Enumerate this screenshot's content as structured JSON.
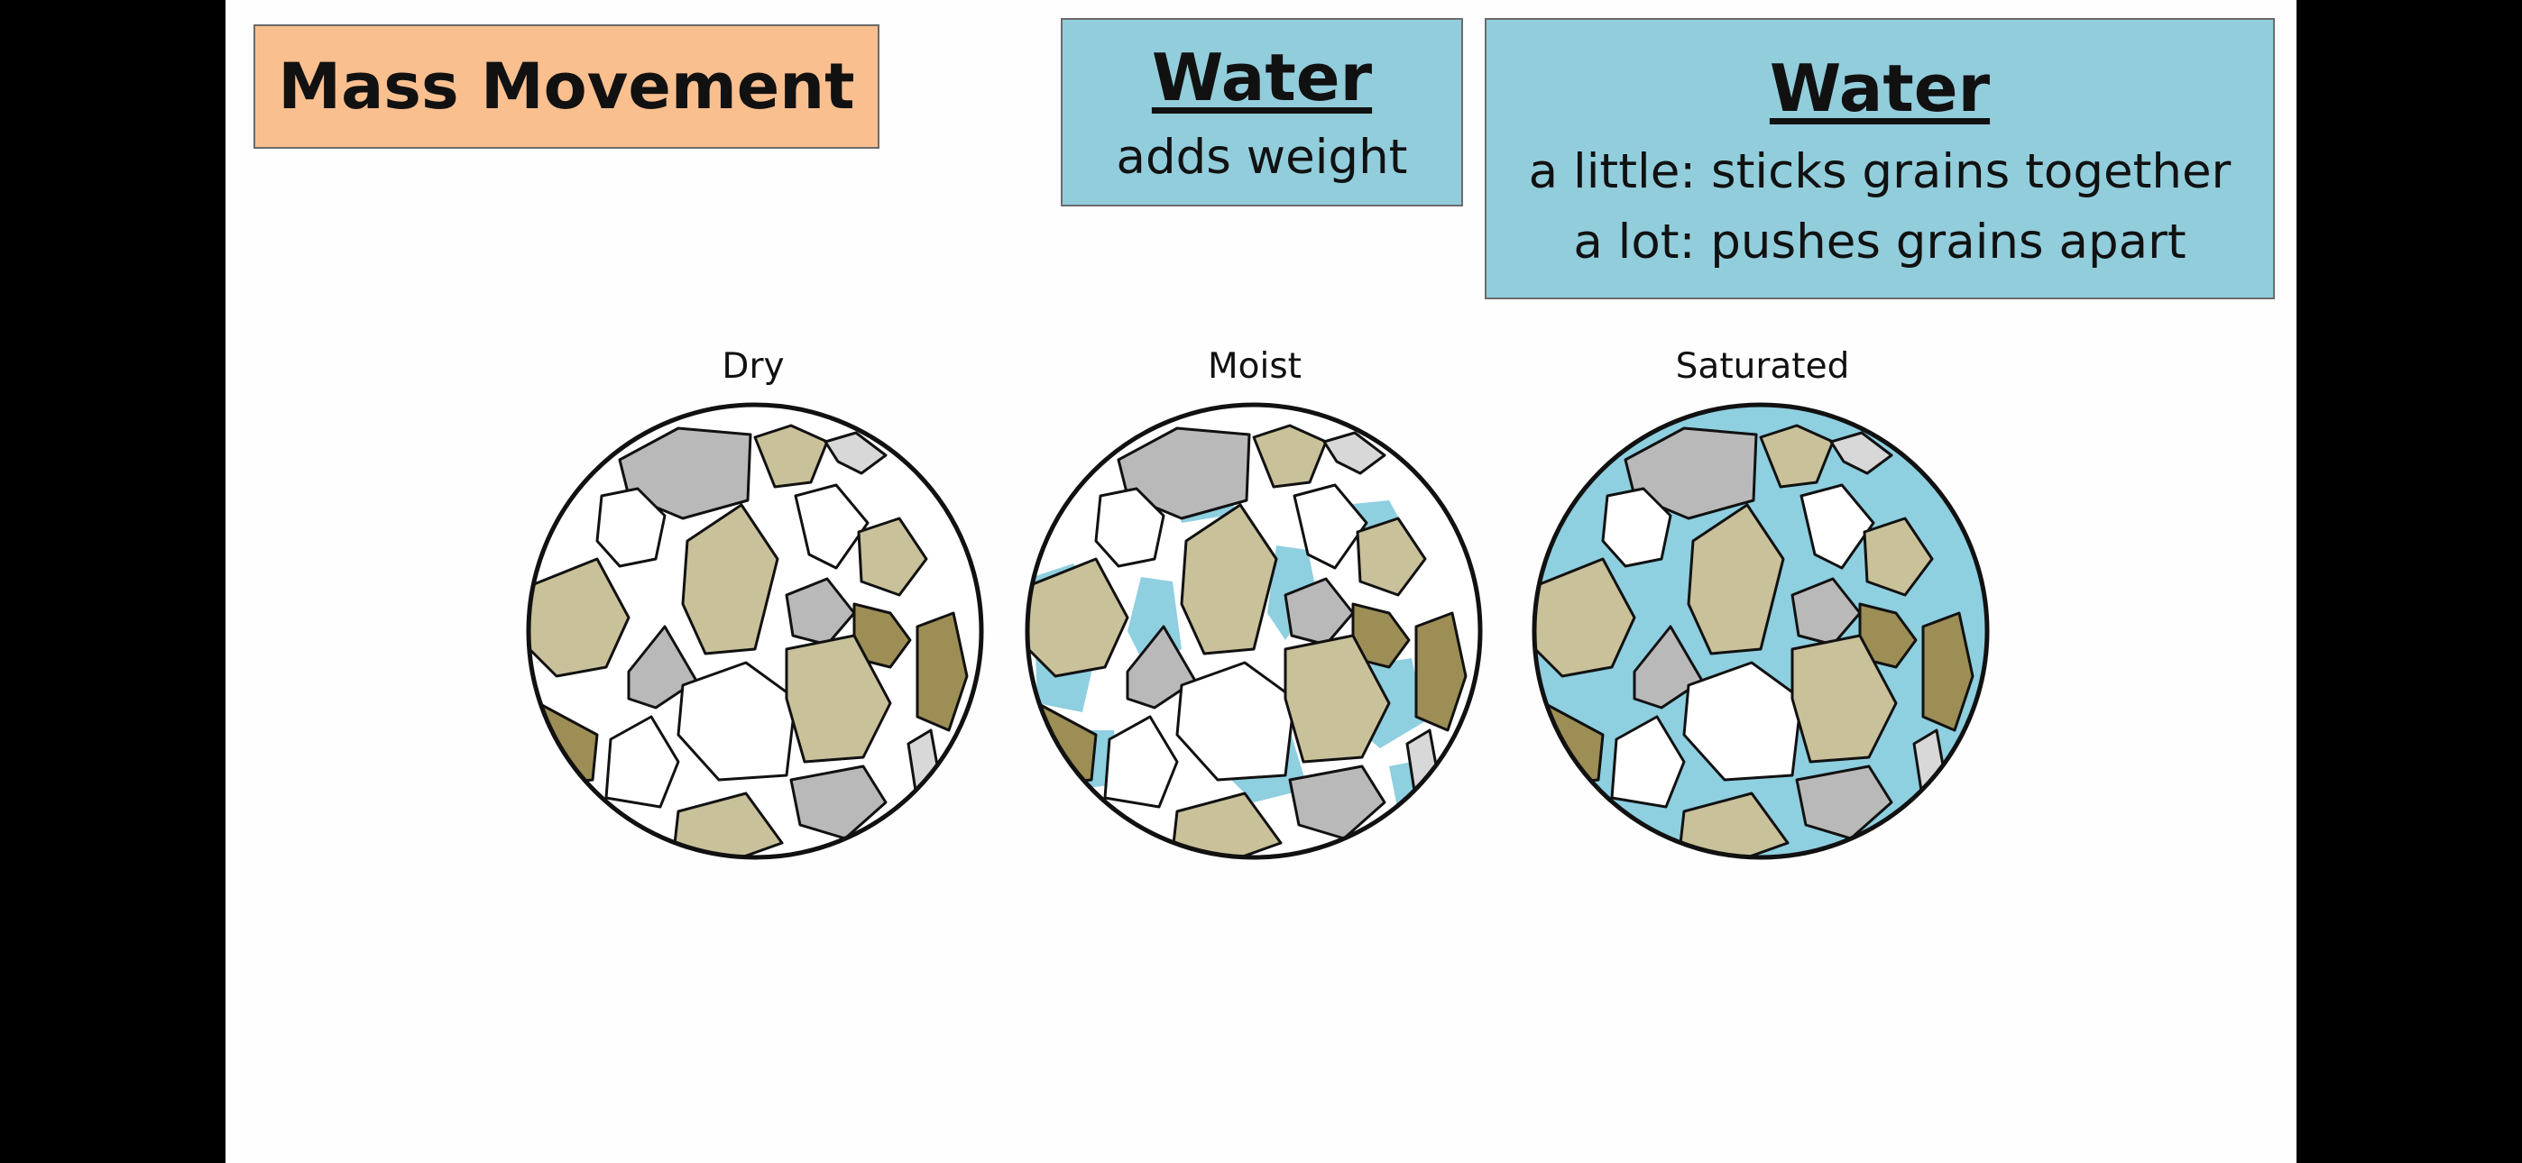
{
  "title": "Mass Movement",
  "water_box_1": {
    "heading": "Water",
    "text": "adds weight"
  },
  "water_box_2": {
    "heading": "Water",
    "line1": "a little: sticks grains together",
    "line2": "a lot: pushes grains apart"
  },
  "diagrams": [
    {
      "label": "Dry",
      "fill": "none"
    },
    {
      "label": "Moist",
      "fill": "partial"
    },
    {
      "label": "Saturated",
      "fill": "full"
    }
  ],
  "colors": {
    "title_bg": "#f9bf8f",
    "water_box_bg": "#92cddc",
    "water": "#8ecfe0",
    "grain_tan": "#c9c19a",
    "grain_dark": "#9c8e55",
    "grain_gray": "#b9b9b9",
    "grain_light_gray": "#d8d8d8",
    "grain_white": "#ffffff",
    "outline": "#111111"
  }
}
